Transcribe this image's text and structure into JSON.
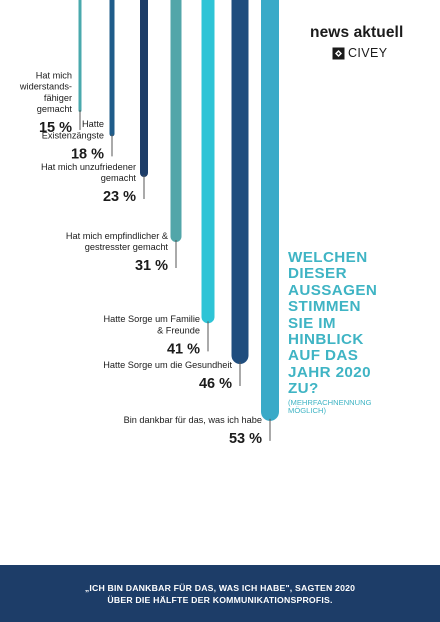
{
  "brand": {
    "title": "news aktuell",
    "subtitle": "CIVEY"
  },
  "question": {
    "title": "WELCHEN\nDIESER\nAUSSAGEN\nSTIMMEN\nSIE IM\nHINBLICK\nAUF DAS\nJAHR 2020\nZU?",
    "note": "(MEHRFACHNENNUNG\nMÖGLICH)"
  },
  "footer": {
    "text": "„ICH BIN DANKBAR FÜR DAS, WAS ICH HABE\", SAGTEN 2020\nÜBER DIE HÄLFTE DER KOMMUNIKATIONSPROFIS."
  },
  "colors": {
    "title_teal": "#3fb4c4",
    "footer_navy": "#1d3d68",
    "text_dark": "#1b1b1b",
    "leader": "#555555"
  },
  "chart_data": {
    "type": "bar",
    "orientation": "vertical-bars-from-top",
    "value_format": "{v} %",
    "categories": [
      "Hat mich widerstands-fähiger gemacht",
      "Hatte Existenzängste",
      "Hat mich unzufriedener gemacht",
      "Hat mich empfindlicher & gestresster gemacht",
      "Hatte Sorge um Familie & Freunde",
      "Hatte Sorge um die Gesundheit",
      "Bin dankbar für das, was ich habe"
    ],
    "label_lines": [
      [
        "Hat mich",
        "widerstands-",
        "fähiger",
        "gemacht"
      ],
      [
        "Hatte",
        "Existenzängste"
      ],
      [
        "Hat mich unzufriedener",
        "gemacht"
      ],
      [
        "Hat mich empfindlicher &",
        "gestresster gemacht"
      ],
      [
        "Hatte Sorge um Familie",
        "& Freunde"
      ],
      [
        "Hatte Sorge um die Gesundheit"
      ],
      [
        "Bin dankbar für das, was ich habe"
      ]
    ],
    "values": [
      15,
      18,
      23,
      31,
      41,
      46,
      53
    ],
    "bar_colors": [
      "#49a9ad",
      "#1f5c8a",
      "#1d3d68",
      "#52a6a9",
      "#2ec4d6",
      "#1f4d7e",
      "#3aaac8"
    ]
  }
}
